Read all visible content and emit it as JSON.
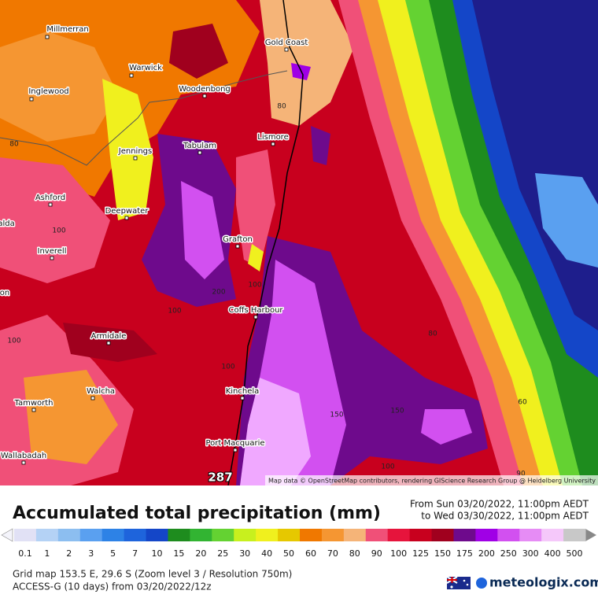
{
  "map": {
    "places": [
      "Millmerran",
      "Warwick",
      "Inglewood",
      "Woodenbong",
      "Gold Coast",
      "Jennings",
      "Tabulam",
      "Lismore",
      "Ashford",
      "Deepwater",
      "alda",
      "Inverell",
      "Grafton",
      "on",
      "Coffs Harbour",
      "Armidale",
      "Walcha",
      "Tamworth",
      "Kinchela",
      "Port Macquarie",
      "Wallabadah"
    ],
    "contour_labels": [
      "80",
      "80",
      "100",
      "100",
      "200",
      "100",
      "100",
      "100",
      "80",
      "150",
      "150",
      "60",
      "100",
      "90"
    ],
    "max_label": "287",
    "attribution": "Map data © OpenStreetMap contributors, rendering GIScience Research Group @ Heidelberg University"
  },
  "legend": {
    "title": "Accumulated total precipitation (mm)",
    "period_from": "From Sun 03/20/2022, 11:00pm AEDT",
    "period_to": "to Wed 03/30/2022, 11:00pm AEDT",
    "scale": [
      {
        "label": "0.1",
        "color": "#e1e1f5"
      },
      {
        "label": "1",
        "color": "#b4d2f5"
      },
      {
        "label": "2",
        "color": "#8cbef0"
      },
      {
        "label": "3",
        "color": "#5aa0f0"
      },
      {
        "label": "5",
        "color": "#2d82e6"
      },
      {
        "label": "7",
        "color": "#1e64dc"
      },
      {
        "label": "10",
        "color": "#1446c8"
      },
      {
        "label": "15",
        "color": "#1e8c1e"
      },
      {
        "label": "20",
        "color": "#32b432"
      },
      {
        "label": "25",
        "color": "#64d232"
      },
      {
        "label": "30",
        "color": "#c8f01e"
      },
      {
        "label": "40",
        "color": "#f0f01e"
      },
      {
        "label": "50",
        "color": "#e6c800"
      },
      {
        "label": "60",
        "color": "#f07800"
      },
      {
        "label": "70",
        "color": "#f59632"
      },
      {
        "label": "80",
        "color": "#f5b478"
      },
      {
        "label": "90",
        "color": "#f05078"
      },
      {
        "label": "100",
        "color": "#e6143c"
      },
      {
        "label": "125",
        "color": "#c8001e"
      },
      {
        "label": "150",
        "color": "#a0001e"
      },
      {
        "label": "175",
        "color": "#6e0a8c"
      },
      {
        "label": "200",
        "color": "#a000e6"
      },
      {
        "label": "250",
        "color": "#d250f0"
      },
      {
        "label": "300",
        "color": "#e68cf5"
      },
      {
        "label": "400",
        "color": "#f5c8fa"
      },
      {
        "label": "500",
        "color": "#c8c8c8"
      }
    ]
  },
  "footer": {
    "grid": "Grid map 153.5 E, 29.6 S (Zoom level 3 / Resolution 750m)",
    "model": "ACCESS-G (10 days) from 03/20/2022/12z",
    "brand": "meteologix.com"
  }
}
